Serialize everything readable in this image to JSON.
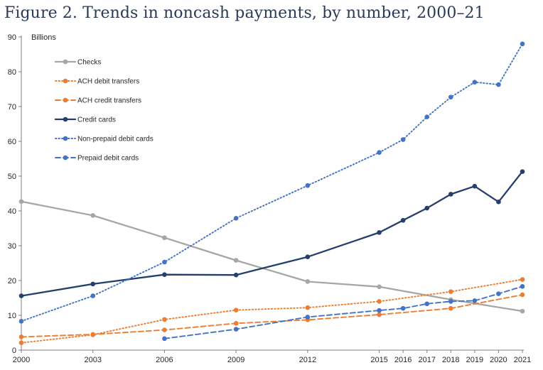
{
  "chart_data": {
    "type": "line",
    "title": "Figure 2. Trends in noncash payments, by number, 2000–21",
    "ylabel": "Billions",
    "xlabel": "",
    "ylim": [
      0,
      90
    ],
    "yticks": [
      0,
      10,
      20,
      30,
      40,
      50,
      60,
      70,
      80,
      90
    ],
    "xticks": [
      2000,
      2003,
      2006,
      2009,
      2012,
      2015,
      2016,
      2017,
      2018,
      2019,
      2020,
      2021
    ],
    "grid": false,
    "legend_position": "top-left",
    "series": [
      {
        "name": "Checks",
        "color": "#a6a6a6",
        "style": "solid",
        "x": [
          2000,
          2003,
          2006,
          2009,
          2012,
          2015,
          2018,
          2021
        ],
        "values": [
          42.7,
          38.7,
          32.3,
          25.8,
          19.7,
          18.2,
          14.5,
          11.2
        ]
      },
      {
        "name": "ACH debit transfers",
        "color": "#ed7d31",
        "style": "dotted",
        "x": [
          2000,
          2003,
          2006,
          2009,
          2012,
          2015,
          2018,
          2021
        ],
        "values": [
          2.1,
          4.4,
          8.8,
          11.5,
          12.2,
          14.0,
          16.8,
          20.3
        ]
      },
      {
        "name": "ACH credit transfers",
        "color": "#ed7d31",
        "style": "dashed",
        "x": [
          2000,
          2003,
          2006,
          2009,
          2012,
          2015,
          2018,
          2021
        ],
        "values": [
          3.8,
          4.5,
          5.8,
          7.7,
          8.7,
          10.2,
          12.0,
          15.9
        ]
      },
      {
        "name": "Credit cards",
        "color": "#243f6b",
        "style": "solid",
        "x": [
          2000,
          2003,
          2006,
          2009,
          2012,
          2015,
          2016,
          2017,
          2018,
          2019,
          2020,
          2021
        ],
        "values": [
          15.6,
          19.0,
          21.7,
          21.6,
          26.8,
          33.8,
          37.3,
          40.8,
          44.8,
          47.1,
          42.6,
          51.3
        ]
      },
      {
        "name": "Non-prepaid debit cards",
        "color": "#4472c4",
        "style": "dotted",
        "x": [
          2000,
          2003,
          2006,
          2009,
          2012,
          2015,
          2016,
          2017,
          2018,
          2019,
          2020,
          2021
        ],
        "values": [
          8.3,
          15.6,
          25.3,
          37.9,
          47.3,
          56.8,
          60.5,
          67.0,
          72.7,
          77.0,
          76.3,
          88.0
        ]
      },
      {
        "name": "Prepaid debit cards",
        "color": "#4472c4",
        "style": "dashed",
        "x": [
          2006,
          2009,
          2012,
          2015,
          2016,
          2017,
          2018,
          2019,
          2020,
          2021
        ],
        "values": [
          3.3,
          6.0,
          9.5,
          11.4,
          12.0,
          13.3,
          14.0,
          14.2,
          16.2,
          18.3
        ]
      }
    ]
  }
}
